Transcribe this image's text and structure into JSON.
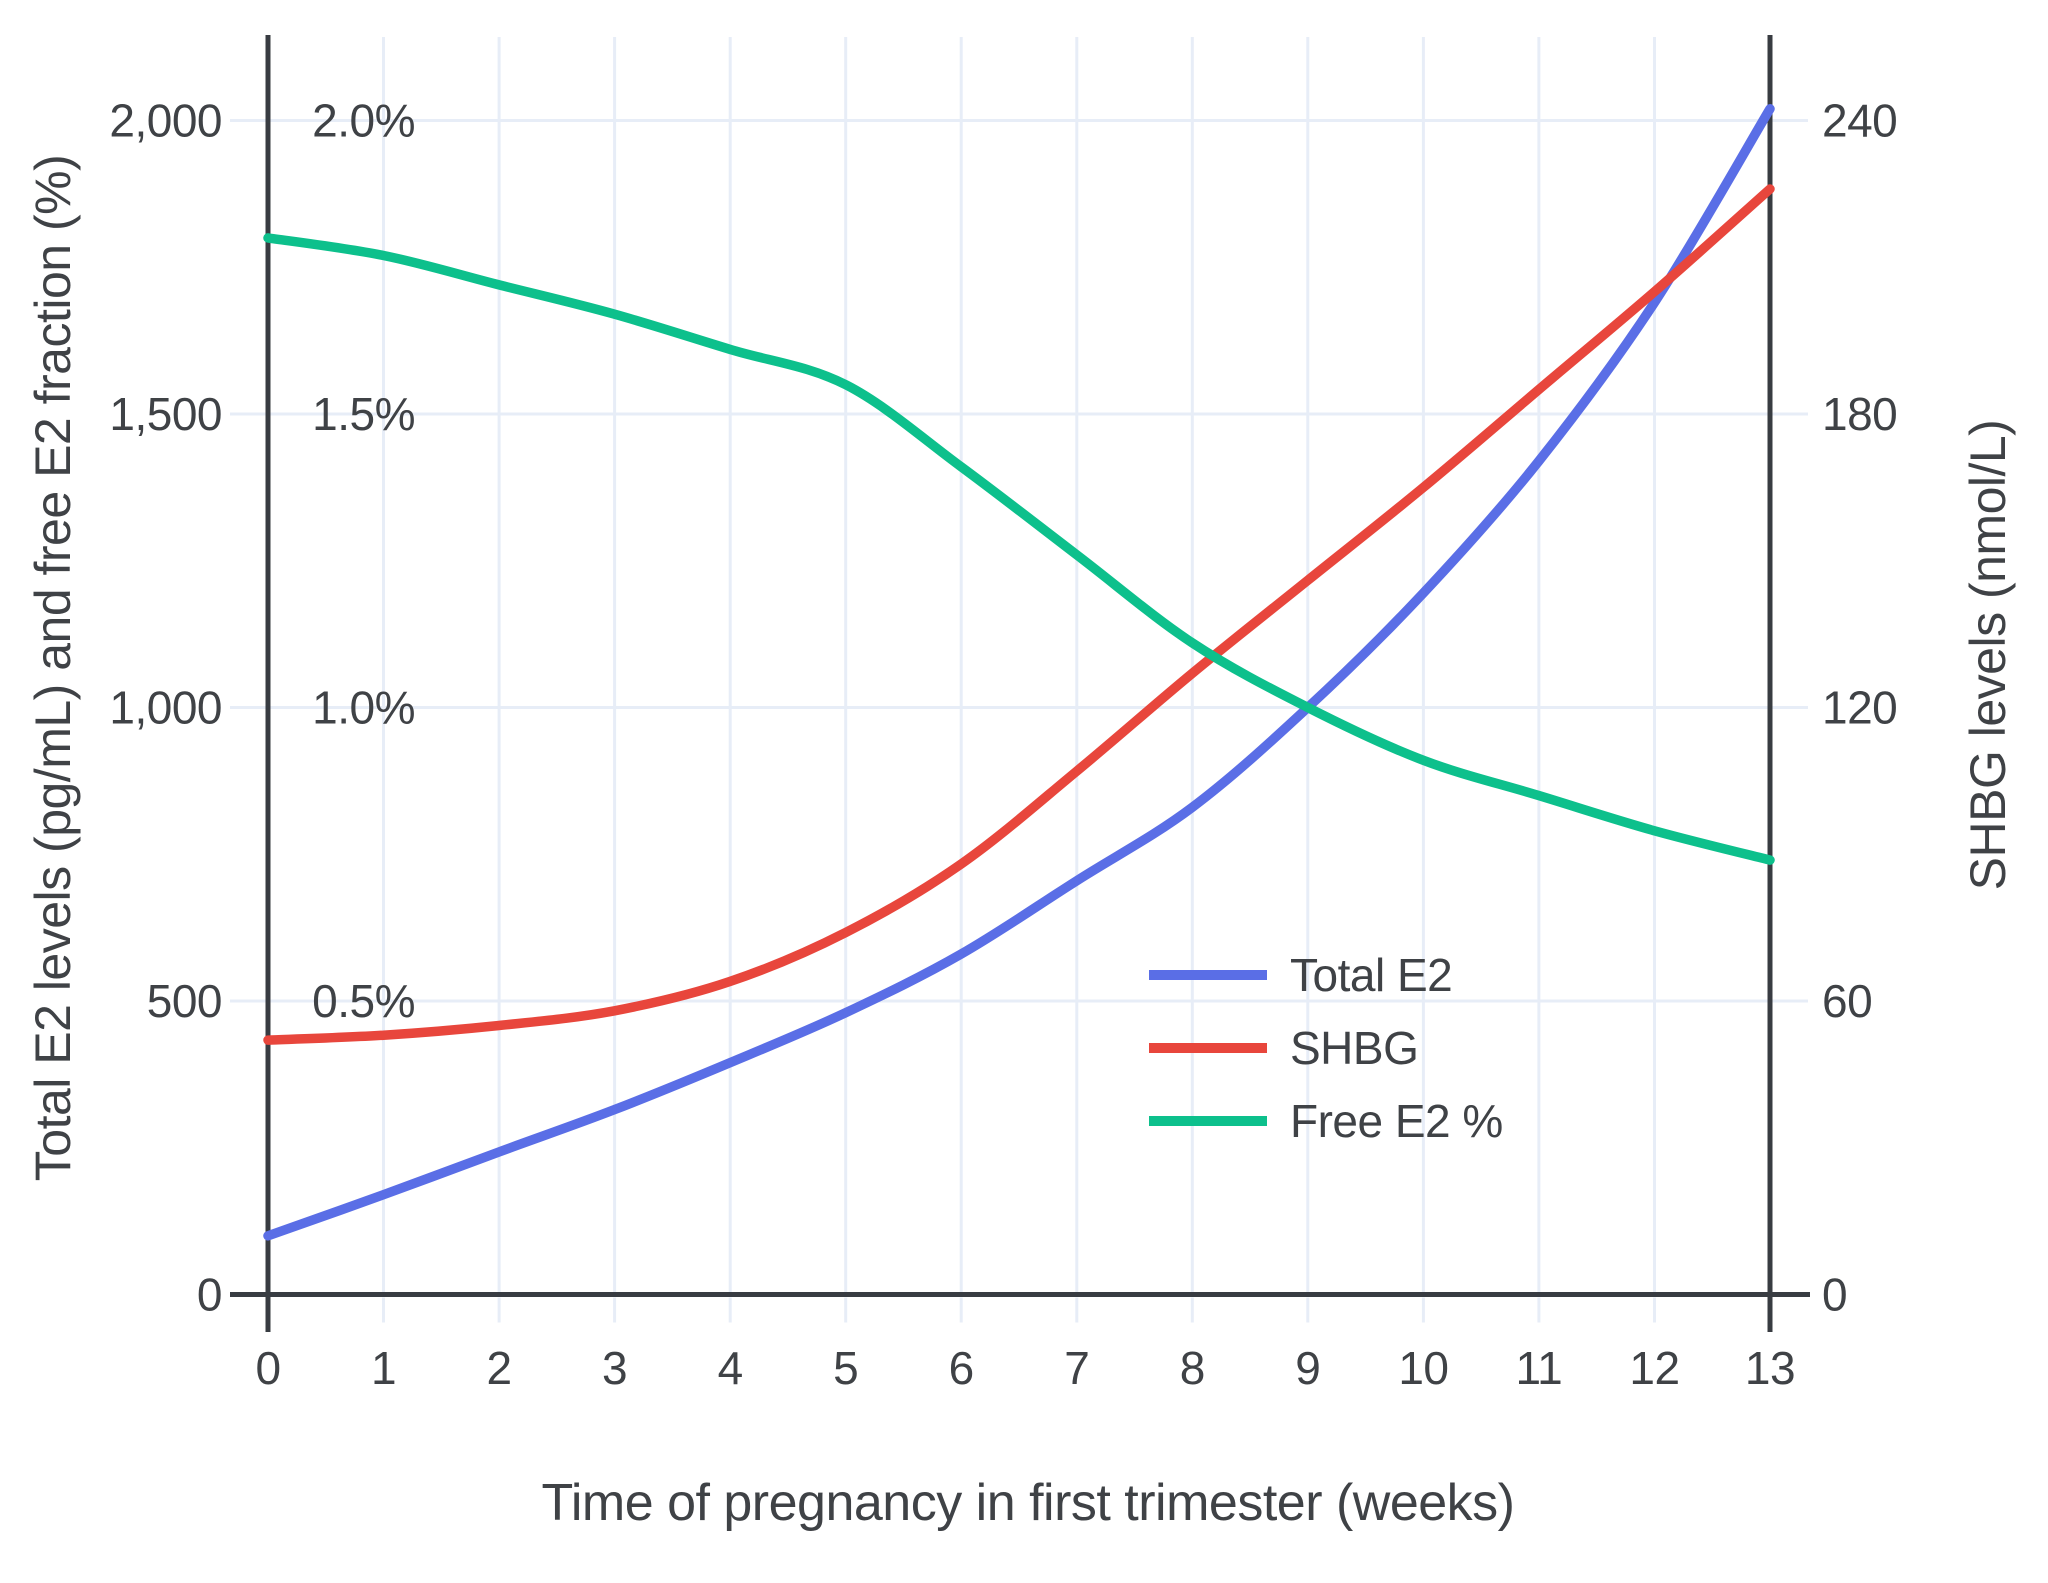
{
  "chart_data": {
    "type": "line",
    "title": "",
    "xlabel": "Time of pregnancy in first trimester (weeks)",
    "ylabel_left": "Total E2 levels (pg/mL) and free E2 fraction (%)",
    "ylabel_right": "SHBG levels (nmol/L)",
    "x": [
      0,
      1,
      2,
      3,
      4,
      5,
      6,
      7,
      8,
      9,
      10,
      11,
      12,
      13
    ],
    "x_tick_labels": [
      "0",
      "1",
      "2",
      "3",
      "4",
      "5",
      "6",
      "7",
      "8",
      "9",
      "10",
      "11",
      "12",
      "13"
    ],
    "xlim": [
      0,
      13
    ],
    "ylim_left": [
      0,
      2145
    ],
    "ylim_right": [
      0,
      257
    ],
    "grid": true,
    "legend_position": "inside-right",
    "y_ticks_left": [
      {
        "value": 0,
        "label": "0"
      },
      {
        "value": 500,
        "label": "500"
      },
      {
        "value": 1000,
        "label": "1,000"
      },
      {
        "value": 1500,
        "label": "1,500"
      },
      {
        "value": 2000,
        "label": "2,000"
      }
    ],
    "y_ticks_percent": [
      {
        "value": 0.5,
        "label": "0.5%"
      },
      {
        "value": 1.0,
        "label": "1.0%"
      },
      {
        "value": 1.5,
        "label": "1.5%"
      },
      {
        "value": 2.0,
        "label": "2.0%"
      }
    ],
    "y_ticks_right": [
      {
        "value": 0,
        "label": "0"
      },
      {
        "value": 60,
        "label": "60"
      },
      {
        "value": 120,
        "label": "120"
      },
      {
        "value": 180,
        "label": "180"
      },
      {
        "value": 240,
        "label": "240"
      }
    ],
    "series": [
      {
        "name": "Total E2",
        "axis": "left",
        "unit": "pg/mL",
        "color": "#5a6ee6",
        "values": [
          100,
          170,
          243,
          315,
          395,
          480,
          580,
          705,
          830,
          1000,
          1195,
          1420,
          1690,
          2020
        ]
      },
      {
        "name": "SHBG",
        "axis": "right",
        "unit": "nmol/L",
        "color": "#e8463c",
        "values": [
          52,
          53,
          55,
          58,
          64,
          74,
          88,
          107,
          127,
          146,
          165,
          185,
          205,
          226
        ]
      },
      {
        "name": "Free E2 %",
        "axis": "percent",
        "unit": "%",
        "color": "#0dc08c",
        "values": [
          1.8,
          1.77,
          1.72,
          1.67,
          1.61,
          1.55,
          1.41,
          1.26,
          1.11,
          1.0,
          0.91,
          0.85,
          0.79,
          0.74
        ]
      }
    ]
  },
  "colors": {
    "grid": "#e7edf7",
    "axis": "#383c42",
    "text": "#3f4246",
    "background": "#ffffff"
  }
}
